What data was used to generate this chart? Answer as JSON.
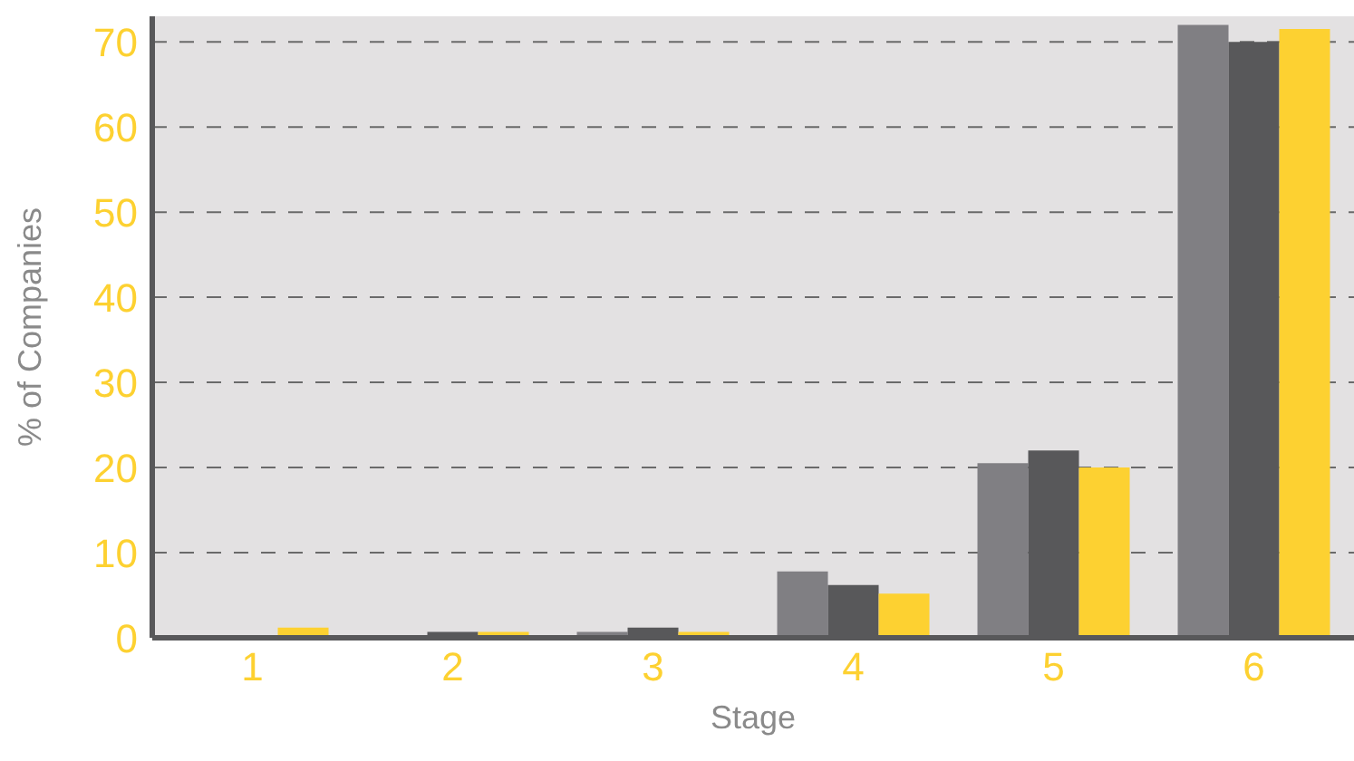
{
  "chart_data": {
    "type": "bar",
    "xlabel": "Stage",
    "ylabel": "% of Companies",
    "categories": [
      "1",
      "2",
      "3",
      "4",
      "5",
      "6"
    ],
    "series": [
      {
        "color": "#807f83",
        "values": [
          0,
          0,
          0.7,
          7.8,
          20.5,
          72
        ]
      },
      {
        "color": "#58585a",
        "values": [
          0,
          0.7,
          1.2,
          6.2,
          22,
          70
        ]
      },
      {
        "color": "#fdd131",
        "values": [
          1.2,
          0.7,
          0.7,
          5.2,
          20,
          71.5
        ]
      }
    ],
    "ylim": [
      0,
      73
    ],
    "yticks": [
      0,
      10,
      20,
      30,
      40,
      50,
      60,
      70
    ],
    "grid": "y",
    "legend": false
  }
}
